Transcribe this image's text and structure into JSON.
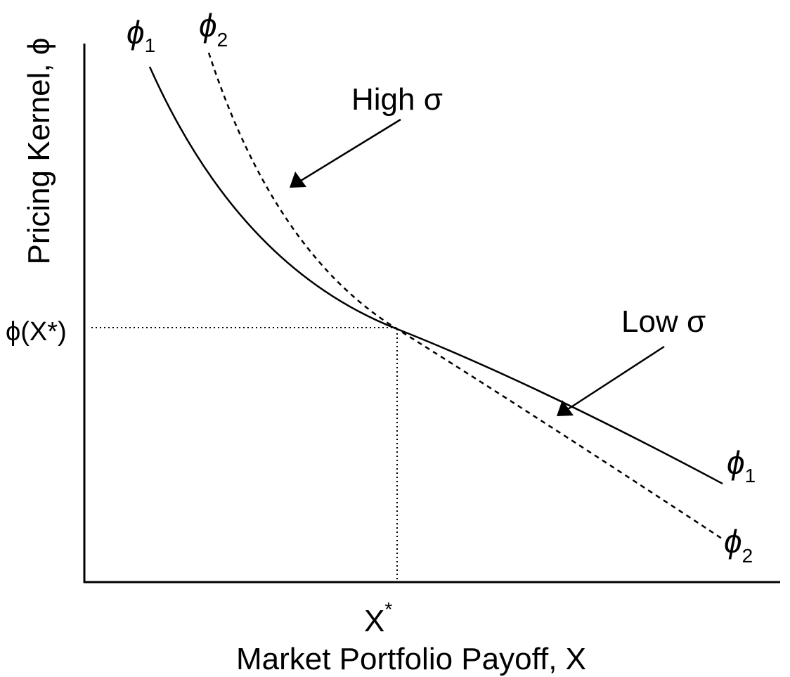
{
  "y_axis": {
    "label": "Pricing Kernel, ϕ",
    "marker": "ϕ(X*)"
  },
  "x_axis": {
    "label": "Market Portfolio Payoff, X",
    "marker": {
      "text": "X",
      "superscript": "*"
    }
  },
  "curves": [
    {
      "symbol": "ϕ",
      "subscript": "1"
    },
    {
      "symbol": "ϕ",
      "subscript": "2"
    }
  ],
  "annotations": [
    "High σ",
    "Low σ"
  ]
}
